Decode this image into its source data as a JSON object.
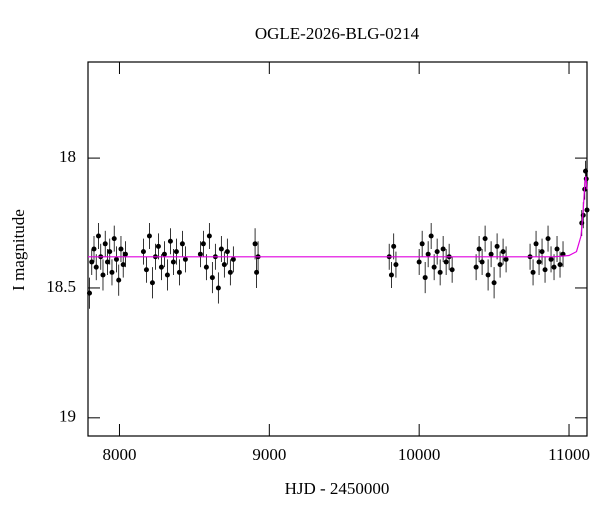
{
  "chart_data": {
    "type": "scatter",
    "title": "OGLE-2026-BLG-0214",
    "xlabel": "HJD - 2450000",
    "ylabel": "I magnitude",
    "xlim": [
      7790,
      11120
    ],
    "ylim": [
      19.07,
      17.63
    ],
    "xticks": [
      8000,
      9000,
      10000,
      11000
    ],
    "yticks": [
      18,
      18.5,
      19
    ],
    "series": [
      {
        "type": "scatter",
        "color": "#000000",
        "x": [
          7800,
          7815,
          7830,
          7845,
          7860,
          7875,
          7890,
          7905,
          7920,
          7935,
          7950,
          7965,
          7980,
          7995,
          8010,
          8025,
          8040,
          8160,
          8180,
          8200,
          8220,
          8240,
          8260,
          8280,
          8300,
          8320,
          8340,
          8360,
          8380,
          8400,
          8420,
          8440,
          8540,
          8560,
          8580,
          8600,
          8620,
          8640,
          8660,
          8680,
          8700,
          8720,
          8740,
          8760,
          8905,
          8915,
          8925,
          9800,
          9815,
          9830,
          9845,
          10000,
          10020,
          10040,
          10060,
          10080,
          10100,
          10120,
          10140,
          10160,
          10180,
          10200,
          10220,
          10380,
          10400,
          10420,
          10440,
          10460,
          10480,
          10500,
          10520,
          10540,
          10560,
          10580,
          10740,
          10760,
          10780,
          10800,
          10820,
          10840,
          10860,
          10880,
          10900,
          10920,
          10940,
          10960,
          11085,
          11095,
          11105,
          11110,
          11115,
          11120
        ],
        "values": [
          18.52,
          18.4,
          18.35,
          18.42,
          18.3,
          18.38,
          18.45,
          18.33,
          18.4,
          18.36,
          18.44,
          18.31,
          18.39,
          18.47,
          18.35,
          18.41,
          18.37,
          18.36,
          18.43,
          18.3,
          18.48,
          18.38,
          18.34,
          18.42,
          18.37,
          18.45,
          18.32,
          18.4,
          18.36,
          18.44,
          18.33,
          18.39,
          18.37,
          18.33,
          18.42,
          18.3,
          18.46,
          18.38,
          18.5,
          18.35,
          18.41,
          18.36,
          18.44,
          18.39,
          18.33,
          18.44,
          18.38,
          18.38,
          18.45,
          18.34,
          18.41,
          18.4,
          18.33,
          18.46,
          18.37,
          18.3,
          18.42,
          18.36,
          18.44,
          18.35,
          18.4,
          18.38,
          18.43,
          18.42,
          18.35,
          18.4,
          18.31,
          18.45,
          18.37,
          18.48,
          18.34,
          18.41,
          18.36,
          18.39,
          18.38,
          18.44,
          18.33,
          18.4,
          18.36,
          18.43,
          18.31,
          18.39,
          18.42,
          18.35,
          18.41,
          18.37,
          18.25,
          18.22,
          18.12,
          18.05,
          18.08,
          18.2
        ],
        "errors": [
          0.06,
          0.05,
          0.05,
          0.05,
          0.05,
          0.05,
          0.06,
          0.05,
          0.05,
          0.05,
          0.05,
          0.05,
          0.05,
          0.06,
          0.05,
          0.05,
          0.05,
          0.05,
          0.05,
          0.05,
          0.06,
          0.05,
          0.05,
          0.05,
          0.05,
          0.06,
          0.05,
          0.05,
          0.05,
          0.05,
          0.05,
          0.05,
          0.05,
          0.05,
          0.05,
          0.05,
          0.06,
          0.05,
          0.06,
          0.05,
          0.05,
          0.05,
          0.05,
          0.05,
          0.06,
          0.06,
          0.06,
          0.05,
          0.05,
          0.05,
          0.05,
          0.05,
          0.05,
          0.06,
          0.05,
          0.05,
          0.05,
          0.05,
          0.05,
          0.05,
          0.05,
          0.05,
          0.05,
          0.05,
          0.05,
          0.05,
          0.05,
          0.06,
          0.05,
          0.06,
          0.05,
          0.05,
          0.05,
          0.05,
          0.05,
          0.05,
          0.05,
          0.05,
          0.05,
          0.05,
          0.05,
          0.05,
          0.05,
          0.05,
          0.05,
          0.05,
          0.05,
          0.05,
          0.04,
          0.04,
          0.04,
          0.05
        ]
      },
      {
        "type": "line",
        "color": "#e000e0",
        "x": [
          7790,
          10900,
          11000,
          11050,
          11080,
          11095,
          11105,
          11112,
          11120
        ],
        "values": [
          18.38,
          18.38,
          18.375,
          18.36,
          18.3,
          18.2,
          18.1,
          18.07,
          18.12
        ]
      }
    ]
  }
}
